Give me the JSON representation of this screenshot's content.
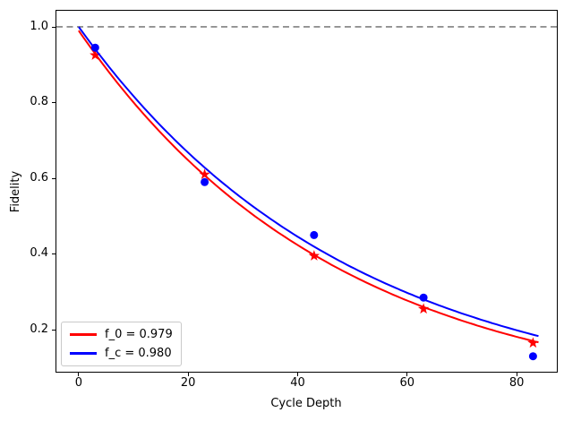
{
  "figure": {
    "background": "#ffffff"
  },
  "chart_data": {
    "type": "scatter",
    "title": "",
    "xlabel": "Cycle Depth",
    "ylabel": "Fidelity",
    "xlim": [
      -4.08,
      87.35
    ],
    "ylim": [
      0.089,
      1.0425
    ],
    "grid": false,
    "x_ticks": [
      0,
      20,
      40,
      60,
      80
    ],
    "x_tick_labels": [
      "0",
      "20",
      "40",
      "60",
      "80"
    ],
    "y_ticks": [
      1.0,
      0.8,
      0.6,
      0.4,
      0.2
    ],
    "y_tick_labels": [
      "1.0",
      "0.8",
      "0.6",
      "0.4",
      "0.2"
    ],
    "reference_line": {
      "y": 1.0,
      "color": "#808080",
      "style": "dashed"
    },
    "series": [
      {
        "name": "f_0 = 0.979",
        "color": "#ff0000",
        "marker": "star",
        "fit": {
          "amplitude": 0.99,
          "decay": 0.979,
          "x_start": 0,
          "x_end": 84
        },
        "points": {
          "x": [
            3,
            23,
            43,
            63,
            83
          ],
          "y": [
            0.925,
            0.61,
            0.395,
            0.255,
            0.165
          ]
        }
      },
      {
        "name": "f_c = 0.980",
        "color": "#0000ff",
        "marker": "circle",
        "fit": {
          "amplitude": 1.0,
          "decay": 0.98,
          "x_start": 0,
          "x_end": 84
        },
        "points": {
          "x": [
            3,
            23,
            43,
            63,
            83
          ],
          "y": [
            0.945,
            0.59,
            0.45,
            0.285,
            0.13
          ]
        }
      }
    ],
    "legend": {
      "position": "lower left",
      "entries": [
        "f_0 = 0.979",
        "f_c = 0.980"
      ]
    }
  }
}
